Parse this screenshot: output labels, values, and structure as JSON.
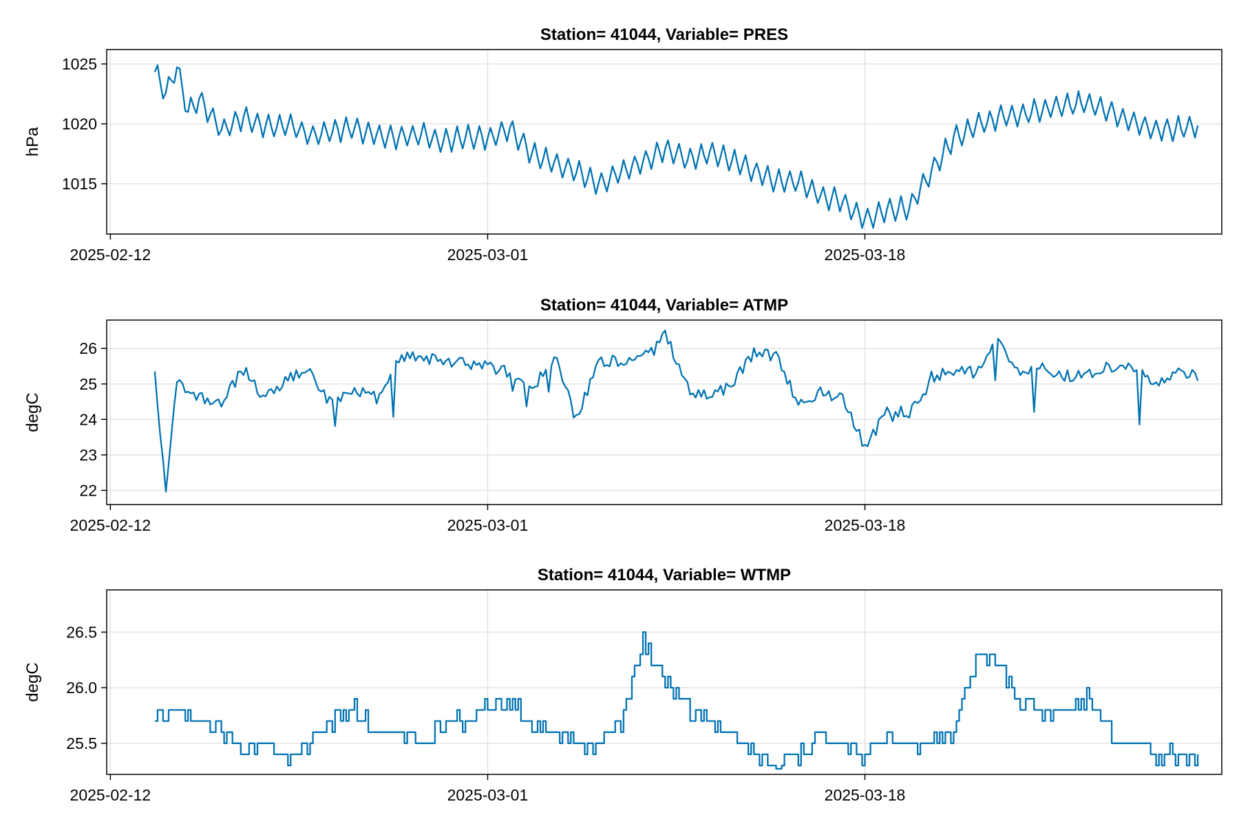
{
  "chart_data": [
    {
      "type": "line",
      "title": "Station= 41044, Variable= PRES",
      "ylabel": "hPa",
      "xlabel": "",
      "xlim": [
        "2025-02-11T20:00",
        "2025-04-03T02:00"
      ],
      "ylim": [
        1010.8,
        1026.2
      ],
      "xticks": [
        "2025-02-12",
        "2025-03-01",
        "2025-03-18"
      ],
      "yticks": [
        1015,
        1020,
        1025
      ],
      "ytick_labels": [
        "1015",
        "1020",
        "1025"
      ],
      "grid": true,
      "color": "#0072b2",
      "series": [
        {
          "x": [
            "2025-02-14",
            "2025-02-14T12:00",
            "2025-02-15",
            "2025-02-15T12:00",
            "2025-02-16",
            "2025-02-17",
            "2025-02-18",
            "2025-02-19",
            "2025-02-20",
            "2025-02-21",
            "2025-02-22",
            "2025-02-23",
            "2025-02-24",
            "2025-02-25",
            "2025-02-26",
            "2025-02-27",
            "2025-02-28",
            "2025-03-01",
            "2025-03-02",
            "2025-03-03",
            "2025-03-04",
            "2025-03-05",
            "2025-03-06",
            "2025-03-07",
            "2025-03-08",
            "2025-03-09",
            "2025-03-10",
            "2025-03-11",
            "2025-03-12",
            "2025-03-13",
            "2025-03-14",
            "2025-03-15",
            "2025-03-16",
            "2025-03-17",
            "2025-03-18",
            "2025-03-19",
            "2025-03-20",
            "2025-03-21",
            "2025-03-22",
            "2025-03-23",
            "2025-03-24",
            "2025-03-25",
            "2025-03-26",
            "2025-03-27",
            "2025-03-28",
            "2025-03-29",
            "2025-03-30",
            "2025-03-31",
            "2025-04-01",
            "2025-04-02"
          ],
          "values": [
            1024.3,
            1022.5,
            1024.8,
            1021.0,
            1022.0,
            1019.5,
            1020.5,
            1019.8,
            1020.0,
            1019.0,
            1019.4,
            1019.6,
            1019.0,
            1018.8,
            1019.2,
            1018.5,
            1019.0,
            1018.8,
            1019.6,
            1017.5,
            1016.8,
            1016.0,
            1015.0,
            1016.0,
            1016.8,
            1017.8,
            1017.0,
            1017.5,
            1017.0,
            1016.0,
            1015.2,
            1015.2,
            1014.0,
            1013.5,
            1012.0,
            1012.8,
            1013.0,
            1016.0,
            1018.8,
            1019.8,
            1020.5,
            1020.8,
            1021.2,
            1021.5,
            1021.8,
            1021.0,
            1020.2,
            1019.5,
            1019.6,
            1019.8
          ]
        }
      ]
    },
    {
      "type": "line",
      "title": "Station= 41044, Variable= ATMP",
      "ylabel": "degC",
      "xlabel": "",
      "xlim": [
        "2025-02-11T20:00",
        "2025-04-03T02:00"
      ],
      "ylim": [
        21.6,
        26.8
      ],
      "xticks": [
        "2025-02-12",
        "2025-03-01",
        "2025-03-18"
      ],
      "yticks": [
        22,
        23,
        24,
        25,
        26
      ],
      "ytick_labels": [
        "22",
        "23",
        "24",
        "25",
        "26"
      ],
      "grid": true,
      "color": "#0072b2",
      "series": [
        {
          "x": [
            "2025-02-14",
            "2025-02-14T12:00",
            "2025-02-15",
            "2025-02-15T12:00",
            "2025-02-16",
            "2025-02-17",
            "2025-02-18",
            "2025-02-19",
            "2025-02-20",
            "2025-02-21",
            "2025-02-22",
            "2025-02-23",
            "2025-02-24",
            "2025-02-25",
            "2025-02-26",
            "2025-02-27",
            "2025-02-28",
            "2025-03-01",
            "2025-03-02",
            "2025-03-03",
            "2025-03-04",
            "2025-03-05",
            "2025-03-06",
            "2025-03-07",
            "2025-03-08",
            "2025-03-09",
            "2025-03-10",
            "2025-03-11",
            "2025-03-12",
            "2025-03-13",
            "2025-03-14",
            "2025-03-15",
            "2025-03-16",
            "2025-03-17",
            "2025-03-18",
            "2025-03-19",
            "2025-03-20",
            "2025-03-21",
            "2025-03-22",
            "2025-03-23",
            "2025-03-24",
            "2025-03-25",
            "2025-03-26",
            "2025-03-27",
            "2025-03-28",
            "2025-03-29",
            "2025-03-30",
            "2025-03-31",
            "2025-04-01",
            "2025-04-02"
          ],
          "values": [
            25.3,
            22.0,
            25.0,
            24.8,
            24.6,
            24.5,
            25.4,
            24.6,
            25.2,
            25.3,
            24.4,
            24.8,
            24.6,
            25.7,
            25.8,
            25.6,
            25.6,
            25.5,
            25.3,
            24.8,
            25.8,
            24.0,
            25.7,
            25.6,
            25.7,
            26.4,
            24.9,
            24.6,
            25.0,
            25.9,
            25.8,
            24.4,
            24.8,
            24.6,
            23.2,
            24.2,
            24.2,
            25.2,
            25.4,
            25.3,
            26.2,
            25.4,
            25.5,
            25.2,
            25.3,
            25.5,
            25.6,
            25.0,
            25.3,
            25.2
          ]
        }
      ]
    },
    {
      "type": "line",
      "title": "Station= 41044, Variable= WTMP",
      "ylabel": "degC",
      "xlabel": "",
      "xlim": [
        "2025-02-11T20:00",
        "2025-04-03T02:00"
      ],
      "ylim": [
        25.22,
        26.88
      ],
      "xticks": [
        "2025-02-12",
        "2025-03-01",
        "2025-03-18"
      ],
      "yticks": [
        25.5,
        26.0,
        26.5
      ],
      "ytick_labels": [
        "25.5",
        "26.0",
        "26.5"
      ],
      "grid": true,
      "color": "#0072b2",
      "series": [
        {
          "x": [
            "2025-02-14",
            "2025-02-15",
            "2025-02-16",
            "2025-02-17",
            "2025-02-18",
            "2025-02-19",
            "2025-02-20",
            "2025-02-21",
            "2025-02-22",
            "2025-02-23",
            "2025-02-24",
            "2025-02-25",
            "2025-02-26",
            "2025-02-27",
            "2025-02-28",
            "2025-03-01",
            "2025-03-02",
            "2025-03-03",
            "2025-03-04",
            "2025-03-05",
            "2025-03-06",
            "2025-03-07",
            "2025-03-08",
            "2025-03-09",
            "2025-03-10",
            "2025-03-11",
            "2025-03-12",
            "2025-03-13",
            "2025-03-14",
            "2025-03-15",
            "2025-03-16",
            "2025-03-17",
            "2025-03-18",
            "2025-03-19",
            "2025-03-20",
            "2025-03-21",
            "2025-03-22",
            "2025-03-23",
            "2025-03-24",
            "2025-03-25",
            "2025-03-26",
            "2025-03-27",
            "2025-03-28",
            "2025-03-29",
            "2025-03-30",
            "2025-03-31",
            "2025-04-01",
            "2025-04-02"
          ],
          "values": [
            25.7,
            25.8,
            25.7,
            25.6,
            25.5,
            25.5,
            25.4,
            25.5,
            25.7,
            25.8,
            25.6,
            25.6,
            25.5,
            25.7,
            25.7,
            25.8,
            25.9,
            25.7,
            25.6,
            25.5,
            25.5,
            25.7,
            26.4,
            26.1,
            25.8,
            25.7,
            25.6,
            25.4,
            25.3,
            25.4,
            25.6,
            25.5,
            25.4,
            25.6,
            25.5,
            25.5,
            25.6,
            26.3,
            26.2,
            25.9,
            25.8,
            25.8,
            25.9,
            25.6,
            25.5,
            25.4,
            25.4,
            25.3
          ]
        }
      ]
    }
  ]
}
